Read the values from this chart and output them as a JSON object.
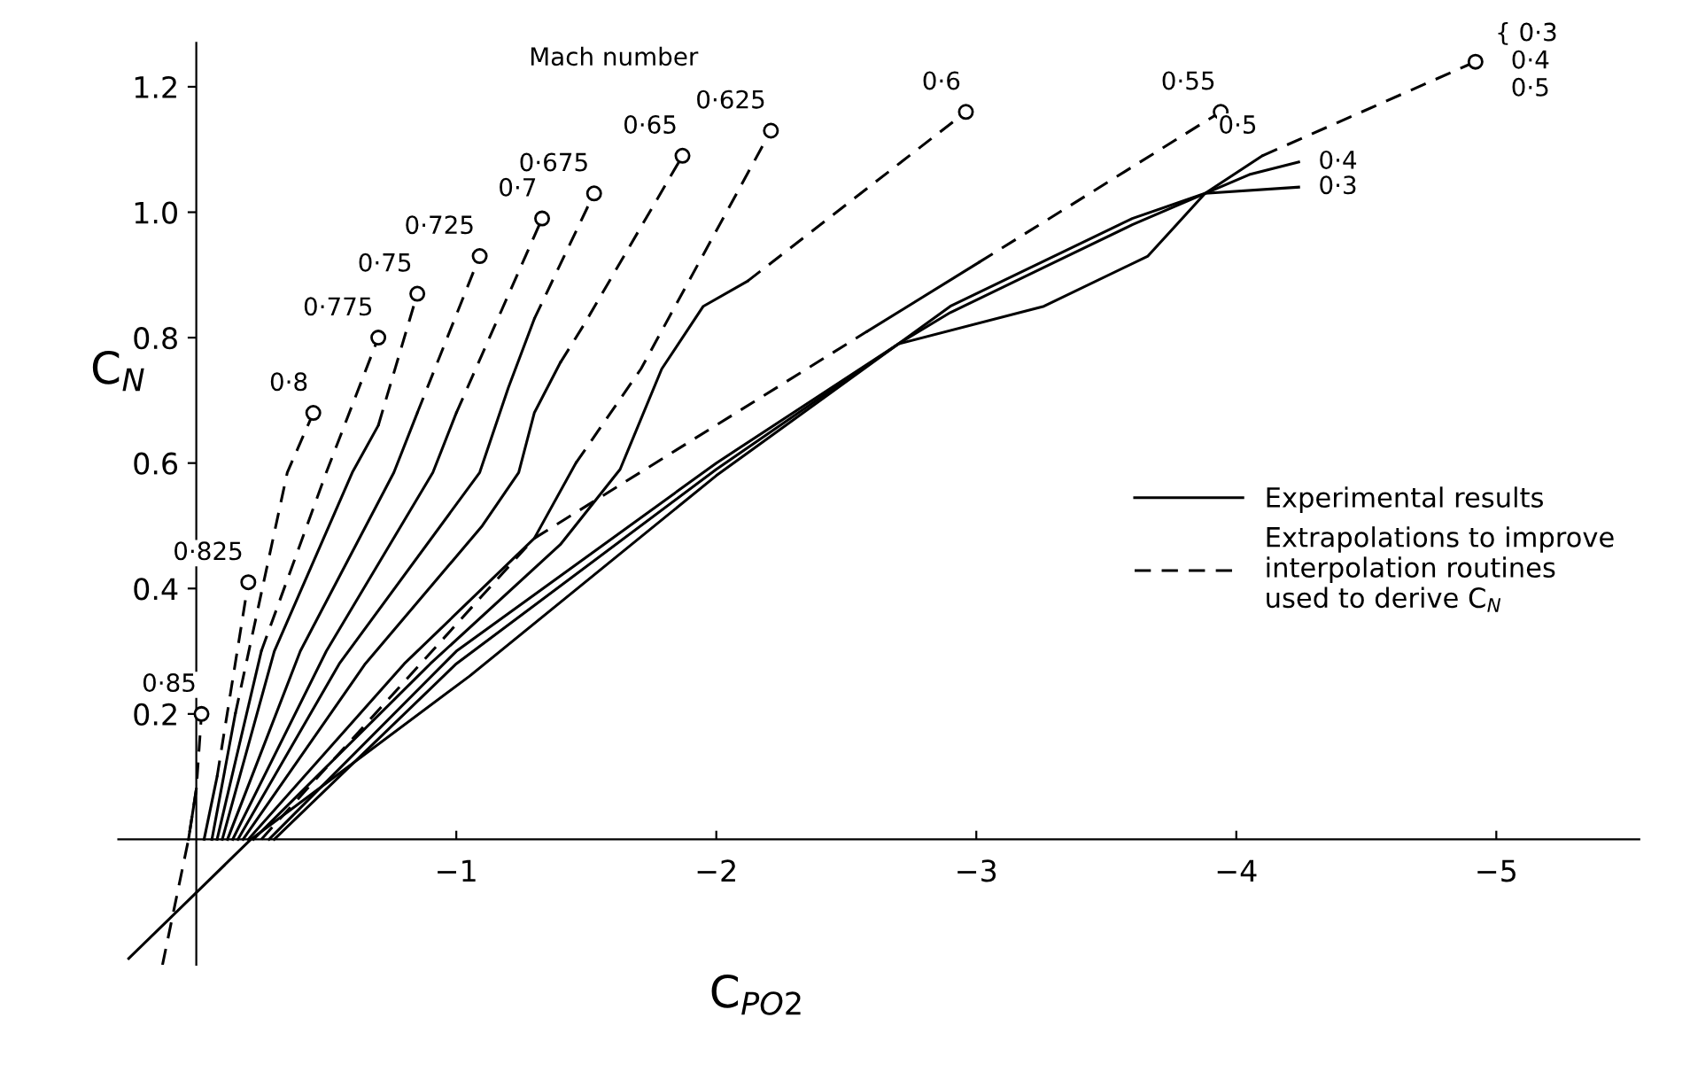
{
  "chart_data": {
    "type": "line",
    "xlabel": "C$_{PO2}$",
    "ylabel": "C$_{N}$",
    "xlim": [
      0.3,
      -5.55
    ],
    "ylim": [
      -0.2,
      1.27
    ],
    "xticks": [
      {
        "value": -1,
        "label": "−1"
      },
      {
        "value": -2,
        "label": "−2"
      },
      {
        "value": -3,
        "label": "−3"
      },
      {
        "value": -4,
        "label": "−4"
      },
      {
        "value": -5,
        "label": "−5"
      }
    ],
    "yticks": [
      0.2,
      0.4,
      0.6,
      0.8,
      {
        "value": 1.0,
        "label": "1.0"
      },
      1.2
    ],
    "grid": false,
    "legend": "right",
    "series": [
      {
        "line_style": "solid",
        "color": "#000000",
        "name": "Experimental results",
        "x": [
          0.03,
          0.0
        ],
        "values": [
          0.0,
          0.08
        ]
      },
      {
        "line_style": "dashed",
        "color": "#000000",
        "name": "Extrapolations to improve\ninterpolation routines\nused to derive C$_{N}$",
        "x": [
          0.13,
          0.03,
          0.0,
          -0.02
        ],
        "values": [
          -0.2,
          0.0,
          0.08,
          0.2
        ]
      },
      {
        "line_style": "solid",
        "color": "#000000",
        "x": [
          -0.03,
          -0.08
        ],
        "values": [
          0.0,
          0.1
        ]
      },
      {
        "line_style": "dashed",
        "color": "#000000",
        "x": [
          -0.08,
          -0.2
        ],
        "values": [
          0.1,
          0.41
        ]
      },
      {
        "line_style": "solid",
        "color": "#000000",
        "x": [
          -0.06,
          -0.15
        ],
        "values": [
          0.0,
          0.2
        ]
      },
      {
        "line_style": "dashed",
        "color": "#000000",
        "x": [
          -0.15,
          -0.35,
          -0.45
        ],
        "values": [
          0.2,
          0.585,
          0.68
        ]
      },
      {
        "line_style": "solid",
        "color": "#000000",
        "x": [
          -0.08,
          -0.25
        ],
        "values": [
          0.0,
          0.3
        ]
      },
      {
        "line_style": "dashed",
        "color": "#000000",
        "x": [
          -0.25,
          -0.5,
          -0.7
        ],
        "values": [
          0.3,
          0.585,
          0.8
        ]
      },
      {
        "line_style": "solid",
        "color": "#000000",
        "x": [
          -0.1,
          -0.3,
          -0.6,
          -0.7
        ],
        "values": [
          0.0,
          0.3,
          0.585,
          0.66
        ]
      },
      {
        "line_style": "dashed",
        "color": "#000000",
        "x": [
          -0.7,
          -0.85
        ],
        "values": [
          0.66,
          0.87
        ]
      },
      {
        "line_style": "solid",
        "color": "#000000",
        "x": [
          -0.12,
          -0.4,
          -0.76,
          -0.85
        ],
        "values": [
          0.0,
          0.3,
          0.585,
          0.68
        ]
      },
      {
        "line_style": "dashed",
        "color": "#000000",
        "x": [
          -0.85,
          -1.09
        ],
        "values": [
          0.68,
          0.93
        ]
      },
      {
        "line_style": "solid",
        "color": "#000000",
        "x": [
          -0.14,
          -0.5,
          -0.91,
          -1.0
        ],
        "values": [
          0.0,
          0.3,
          0.585,
          0.68
        ]
      },
      {
        "line_style": "dashed",
        "color": "#000000",
        "x": [
          -1.0,
          -1.33
        ],
        "values": [
          0.68,
          0.99
        ]
      },
      {
        "line_style": "solid",
        "color": "#000000",
        "x": [
          -0.16,
          -0.55,
          -1.09,
          -1.2,
          -1.3
        ],
        "values": [
          0.0,
          0.28,
          0.585,
          0.72,
          0.83
        ]
      },
      {
        "line_style": "dashed",
        "color": "#000000",
        "x": [
          -1.3,
          -1.53
        ],
        "values": [
          0.83,
          1.03
        ]
      },
      {
        "line_style": "solid",
        "color": "#000000",
        "x": [
          -0.18,
          -0.65,
          -1.1,
          -1.24,
          -1.3,
          -1.4
        ],
        "values": [
          0.0,
          0.28,
          0.5,
          0.585,
          0.68,
          0.76
        ]
      },
      {
        "line_style": "dashed",
        "color": "#000000",
        "x": [
          -1.4,
          -1.49,
          -1.87
        ],
        "values": [
          0.76,
          0.82,
          1.09
        ]
      },
      {
        "line_style": "solid",
        "color": "#000000",
        "x": [
          -0.2,
          -0.8,
          -1.3,
          -1.46
        ],
        "values": [
          0.0,
          0.28,
          0.48,
          0.6
        ]
      },
      {
        "line_style": "dashed",
        "color": "#000000",
        "x": [
          -1.46,
          -1.71,
          -2.21
        ],
        "values": [
          0.6,
          0.75,
          1.13
        ]
      },
      {
        "line_style": "solid",
        "color": "#000000",
        "x": [
          -0.22,
          -0.9,
          -1.4,
          -1.63,
          -1.79,
          -1.95,
          -2.12
        ],
        "values": [
          0.0,
          0.28,
          0.47,
          0.59,
          0.75,
          0.85,
          0.89
        ]
      },
      {
        "line_style": "dashed",
        "color": "#000000",
        "x": [
          -2.12,
          -2.96
        ],
        "values": [
          0.89,
          1.16
        ]
      },
      {
        "line_style": "dashed",
        "color": "#000000",
        "x": [
          -0.25,
          -1.3,
          -2.58
        ],
        "values": [
          0.0,
          0.48,
          0.81
        ]
      },
      {
        "line_style": "solid",
        "color": "#000000",
        "x": [
          -2.58,
          -3.01
        ],
        "values": [
          0.81,
          0.92
        ]
      },
      {
        "line_style": "dashed",
        "color": "#000000",
        "x": [
          -3.01,
          -3.94
        ],
        "values": [
          0.92,
          1.16
        ]
      },
      {
        "line_style": "solid",
        "color": "#000000",
        "x": [
          -0.28,
          -1.0,
          -2.0,
          -2.7,
          -2.9,
          -3.6,
          -3.88,
          -4.1
        ],
        "values": [
          0.0,
          0.3,
          0.6,
          0.79,
          0.85,
          0.99,
          1.03,
          1.09
        ]
      },
      {
        "line_style": "dashed",
        "color": "#000000",
        "x": [
          -4.1,
          -4.92
        ],
        "values": [
          1.09,
          1.24
        ]
      },
      {
        "line_style": "solid",
        "color": "#000000",
        "x": [
          -0.3,
          -1.0,
          -2.0,
          -2.7,
          -2.9,
          -3.3,
          -3.6,
          -3.88,
          -4.05,
          -4.24
        ],
        "values": [
          0.0,
          0.28,
          0.59,
          0.79,
          0.84,
          0.92,
          0.98,
          1.03,
          1.06,
          1.08
        ]
      },
      {
        "line_style": "solid",
        "color": "#000000",
        "x": [
          0.26,
          -0.21,
          -1.05,
          -2.0,
          -2.7,
          -3.26,
          -3.66,
          -3.88,
          -4.24
        ],
        "values": [
          -0.19,
          0.0,
          0.26,
          0.58,
          0.79,
          0.85,
          0.93,
          1.03,
          1.04
        ]
      },
      {
        "type": "scatter",
        "marker": "circle",
        "color": "#000000",
        "x": [
          -0.02,
          -0.2,
          -0.45,
          -0.7,
          -0.85,
          -1.09,
          -1.33,
          -1.53,
          -1.87,
          -2.21,
          -2.96,
          -3.94,
          -4.92
        ],
        "values": [
          0.2,
          0.41,
          0.68,
          0.8,
          0.87,
          0.93,
          0.99,
          1.03,
          1.09,
          1.13,
          1.16,
          1.16,
          1.24
        ]
      }
    ],
    "annotations": [
      "Mach number",
      {
        "text": "0·85",
        "x": -0.02,
        "y": 0.2
      },
      {
        "text": "0·825",
        "x": -0.2,
        "y": 0.41
      },
      {
        "text": "0·8",
        "x": -0.45,
        "y": 0.68
      },
      {
        "text": "0·775",
        "x": -0.7,
        "y": 0.8
      },
      {
        "text": "0·75",
        "x": -0.85,
        "y": 0.87
      },
      {
        "text": "0·725",
        "x": -1.09,
        "y": 0.93
      },
      {
        "text": "0·7",
        "x": -1.33,
        "y": 0.99
      },
      {
        "text": "0·675",
        "x": -1.53,
        "y": 1.03
      },
      {
        "text": "0·65",
        "x": -1.87,
        "y": 1.09
      },
      {
        "text": "0·625",
        "x": -2.21,
        "y": 1.13
      },
      {
        "text": "0·6",
        "x": -2.96,
        "y": 1.16
      },
      {
        "text": "0·55",
        "x": -3.94,
        "y": 1.16
      },
      {
        "text": "0·5",
        "x": -4.1,
        "y": 1.09
      },
      {
        "text": "0·4",
        "x": -4.24,
        "y": 1.08
      },
      {
        "text": "0·3",
        "x": -4.24,
        "y": 1.04
      },
      {
        "text": "{ 0·3\n  0·4\n  0·5",
        "x": -4.92,
        "y": 1.24
      }
    ]
  }
}
